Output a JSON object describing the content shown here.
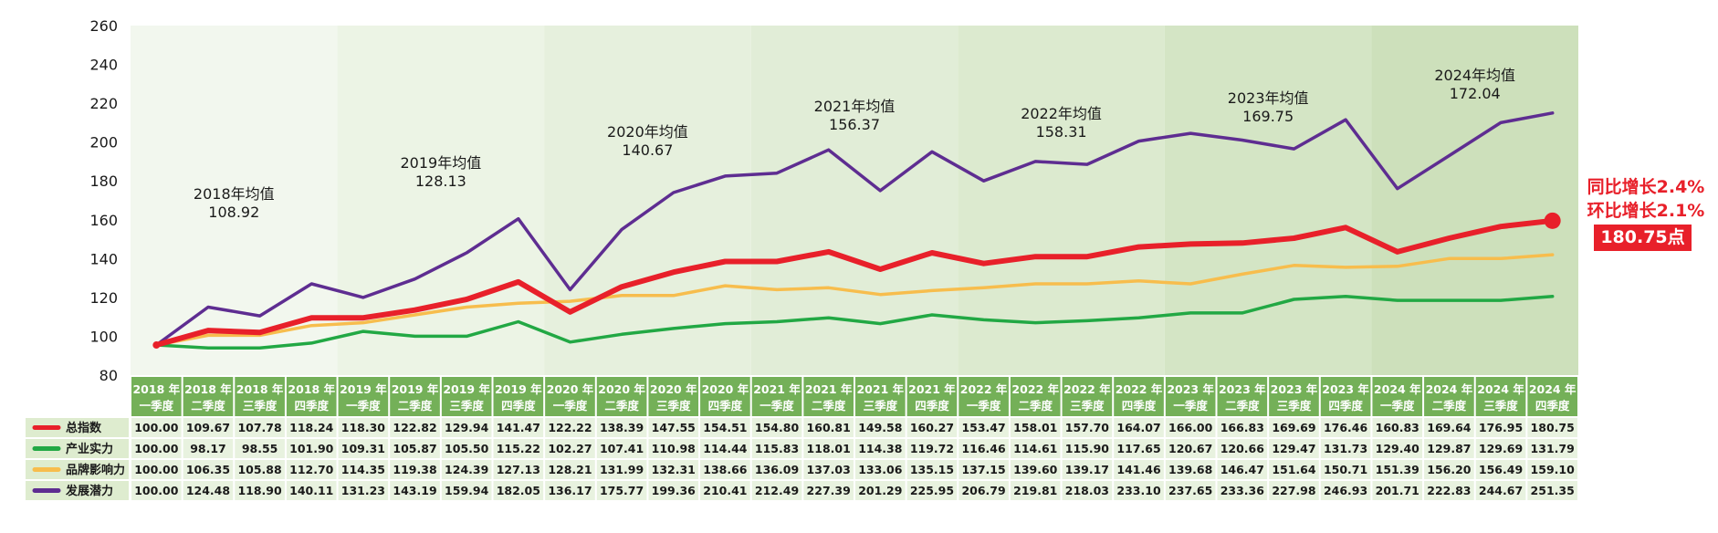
{
  "chart_data": {
    "type": "line",
    "categories": [
      [
        "2018 年",
        "一季度"
      ],
      [
        "2018 年",
        "二季度"
      ],
      [
        "2018 年",
        "三季度"
      ],
      [
        "2018 年",
        "四季度"
      ],
      [
        "2019 年",
        "一季度"
      ],
      [
        "2019 年",
        "二季度"
      ],
      [
        "2019 年",
        "三季度"
      ],
      [
        "2019 年",
        "四季度"
      ],
      [
        "2020 年",
        "一季度"
      ],
      [
        "2020 年",
        "二季度"
      ],
      [
        "2020 年",
        "三季度"
      ],
      [
        "2020 年",
        "四季度"
      ],
      [
        "2021 年",
        "一季度"
      ],
      [
        "2021 年",
        "二季度"
      ],
      [
        "2021 年",
        "三季度"
      ],
      [
        "2021 年",
        "四季度"
      ],
      [
        "2022 年",
        "一季度"
      ],
      [
        "2022 年",
        "二季度"
      ],
      [
        "2022 年",
        "三季度"
      ],
      [
        "2022 年",
        "四季度"
      ],
      [
        "2023 年",
        "一季度"
      ],
      [
        "2023 年",
        "二季度"
      ],
      [
        "2023 年",
        "三季度"
      ],
      [
        "2023 年",
        "四季度"
      ],
      [
        "2024 年",
        "一季度"
      ],
      [
        "2024 年",
        "二季度"
      ],
      [
        "2024 年",
        "三季度"
      ],
      [
        "2024 年",
        "四季度"
      ]
    ],
    "ylim": [
      80,
      260
    ],
    "yticks": [
      80,
      100,
      120,
      140,
      160,
      180,
      200,
      220,
      240,
      260
    ],
    "series": [
      {
        "name": "总指数",
        "color": "#e8202a",
        "values": [
          "100.00",
          "109.67",
          "107.78",
          "118.24",
          "118.30",
          "122.82",
          "129.94",
          "141.47",
          "122.22",
          "138.39",
          "147.55",
          "154.51",
          "154.80",
          "160.81",
          "149.58",
          "160.27",
          "153.47",
          "158.01",
          "157.70",
          "164.07",
          "166.00",
          "166.83",
          "169.69",
          "176.46",
          "160.83",
          "169.64",
          "176.95",
          "180.75"
        ]
      },
      {
        "name": "产业实力",
        "color": "#22a844",
        "values": [
          "100.00",
          "98.17",
          "98.55",
          "101.90",
          "109.31",
          "105.87",
          "105.50",
          "115.22",
          "102.27",
          "107.41",
          "110.98",
          "114.44",
          "115.83",
          "118.01",
          "114.38",
          "119.72",
          "116.46",
          "114.61",
          "115.90",
          "117.65",
          "120.67",
          "120.66",
          "129.47",
          "131.73",
          "129.40",
          "129.87",
          "129.69",
          "131.79"
        ]
      },
      {
        "name": "品牌影响力",
        "color": "#f7bd4d",
        "values": [
          "100.00",
          "106.35",
          "105.88",
          "112.70",
          "114.35",
          "119.38",
          "124.39",
          "127.13",
          "128.21",
          "131.99",
          "132.31",
          "138.66",
          "136.09",
          "137.03",
          "133.06",
          "135.15",
          "137.15",
          "139.60",
          "139.17",
          "141.46",
          "139.68",
          "146.47",
          "151.64",
          "150.71",
          "151.39",
          "156.20",
          "156.49",
          "159.10"
        ]
      },
      {
        "name": "发展潜力",
        "color": "#5e2d91",
        "values": [
          "100.00",
          "124.48",
          "118.90",
          "140.11",
          "131.23",
          "143.19",
          "159.94",
          "182.05",
          "136.17",
          "175.77",
          "199.36",
          "210.41",
          "212.49",
          "227.39",
          "201.29",
          "225.95",
          "206.79",
          "219.81",
          "218.03",
          "233.10",
          "237.65",
          "233.36",
          "227.98",
          "246.93",
          "201.71",
          "222.83",
          "244.67",
          "251.35"
        ]
      }
    ],
    "plotted_points": {
      "总指数": [
        95.5,
        103,
        102,
        109.5,
        109.5,
        113.5,
        119,
        128,
        112.5,
        125.5,
        133,
        138.5,
        138.5,
        143.5,
        134.5,
        143,
        137.5,
        141,
        141,
        146,
        147.5,
        148,
        150.5,
        156,
        143.5,
        150.5,
        156.5,
        159.5
      ],
      "产业实力": [
        95.5,
        94,
        94,
        96.5,
        102.5,
        100,
        100,
        107.5,
        97,
        101,
        104,
        106.5,
        107.5,
        109.5,
        106.5,
        111,
        108.5,
        107,
        108,
        109.5,
        112,
        112,
        119,
        120.5,
        118.5,
        118.5,
        118.5,
        120.5
      ],
      "品牌影响力": [
        95.5,
        100.5,
        100.5,
        105.5,
        107,
        111,
        115,
        117,
        118,
        121,
        121,
        126,
        124,
        125,
        121.5,
        123.5,
        125,
        127,
        127,
        128.5,
        127,
        132,
        136.5,
        135.5,
        136,
        140,
        140,
        142
      ],
      "发展潜力": [
        95.5,
        115,
        110.5,
        127,
        120,
        129.5,
        143,
        160.5,
        124,
        155,
        174,
        182.5,
        184,
        196,
        175,
        195,
        180,
        190,
        188.5,
        200.5,
        204.5,
        201,
        196.5,
        211.5,
        176,
        193,
        210,
        215
      ]
    },
    "annual_averages": [
      {
        "label": "2018年均值",
        "value": "108.92",
        "y": 177
      },
      {
        "label": "2019年均值",
        "value": "128.13",
        "y": 193
      },
      {
        "label": "2020年均值",
        "value": "140.67",
        "y": 209
      },
      {
        "label": "2021年均值",
        "value": "156.37",
        "y": 222
      },
      {
        "label": "2022年均值",
        "value": "158.31",
        "y": 218
      },
      {
        "label": "2023年均值",
        "value": "169.75",
        "y": 226
      },
      {
        "label": "2024年均值",
        "value": "172.04",
        "y": 238
      }
    ],
    "callout": {
      "yoy": "同比增长2.4%",
      "qoq": "环比增长2.1%",
      "value": "180.75点"
    },
    "band_colors": [
      "#f2f7ee",
      "#ecf4e5",
      "#e6f0dd",
      "#e1edd7",
      "#dceacf",
      "#d4e5c5",
      "#cde0bb"
    ],
    "header_color": "#74b058",
    "label_cell_color": "#deeccf",
    "value_cell_color": "#e8f2df"
  }
}
